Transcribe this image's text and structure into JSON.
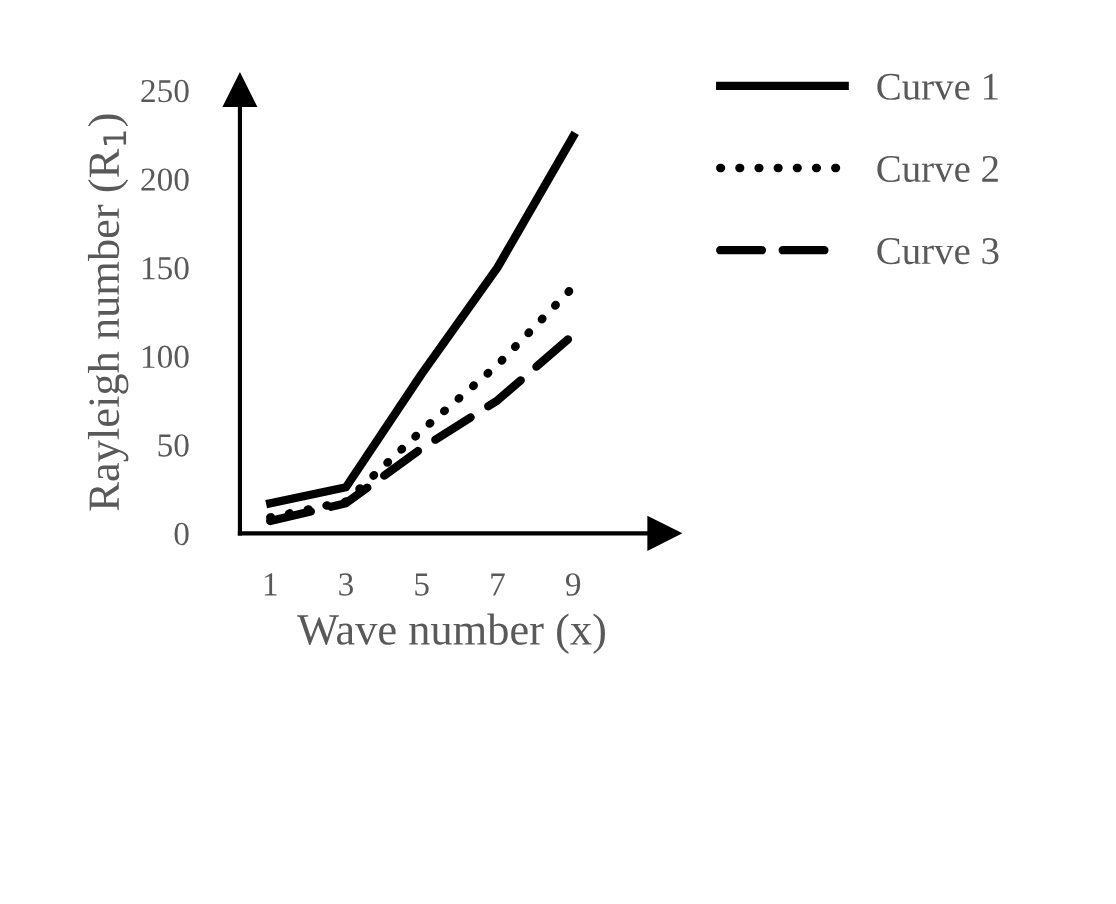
{
  "chart_data": {
    "type": "line",
    "xlabel": "Wave number (x)",
    "ylabel": "Rayleigh number (R$_{1}$)",
    "categories": [
      "1",
      "3",
      "5",
      "7",
      "9"
    ],
    "series": [
      {
        "name": "Curve 1",
        "color": "#000000",
        "line_style": "solid",
        "values": [
          17,
          26,
          90,
          150,
          224
        ]
      },
      {
        "name": "Curve 2",
        "color": "#000000",
        "line_style": "dotted",
        "values": [
          9,
          18,
          58,
          95,
          139
        ]
      },
      {
        "name": "Curve 3",
        "color": "#000000",
        "line_style": "dashed",
        "values": [
          7,
          17,
          48,
          75,
          112
        ]
      }
    ],
    "ylim": [
      0,
      250
    ],
    "yticks": [
      0,
      50,
      100,
      150,
      200,
      250
    ],
    "grid": false,
    "legend": "top right",
    "marker": "none"
  }
}
